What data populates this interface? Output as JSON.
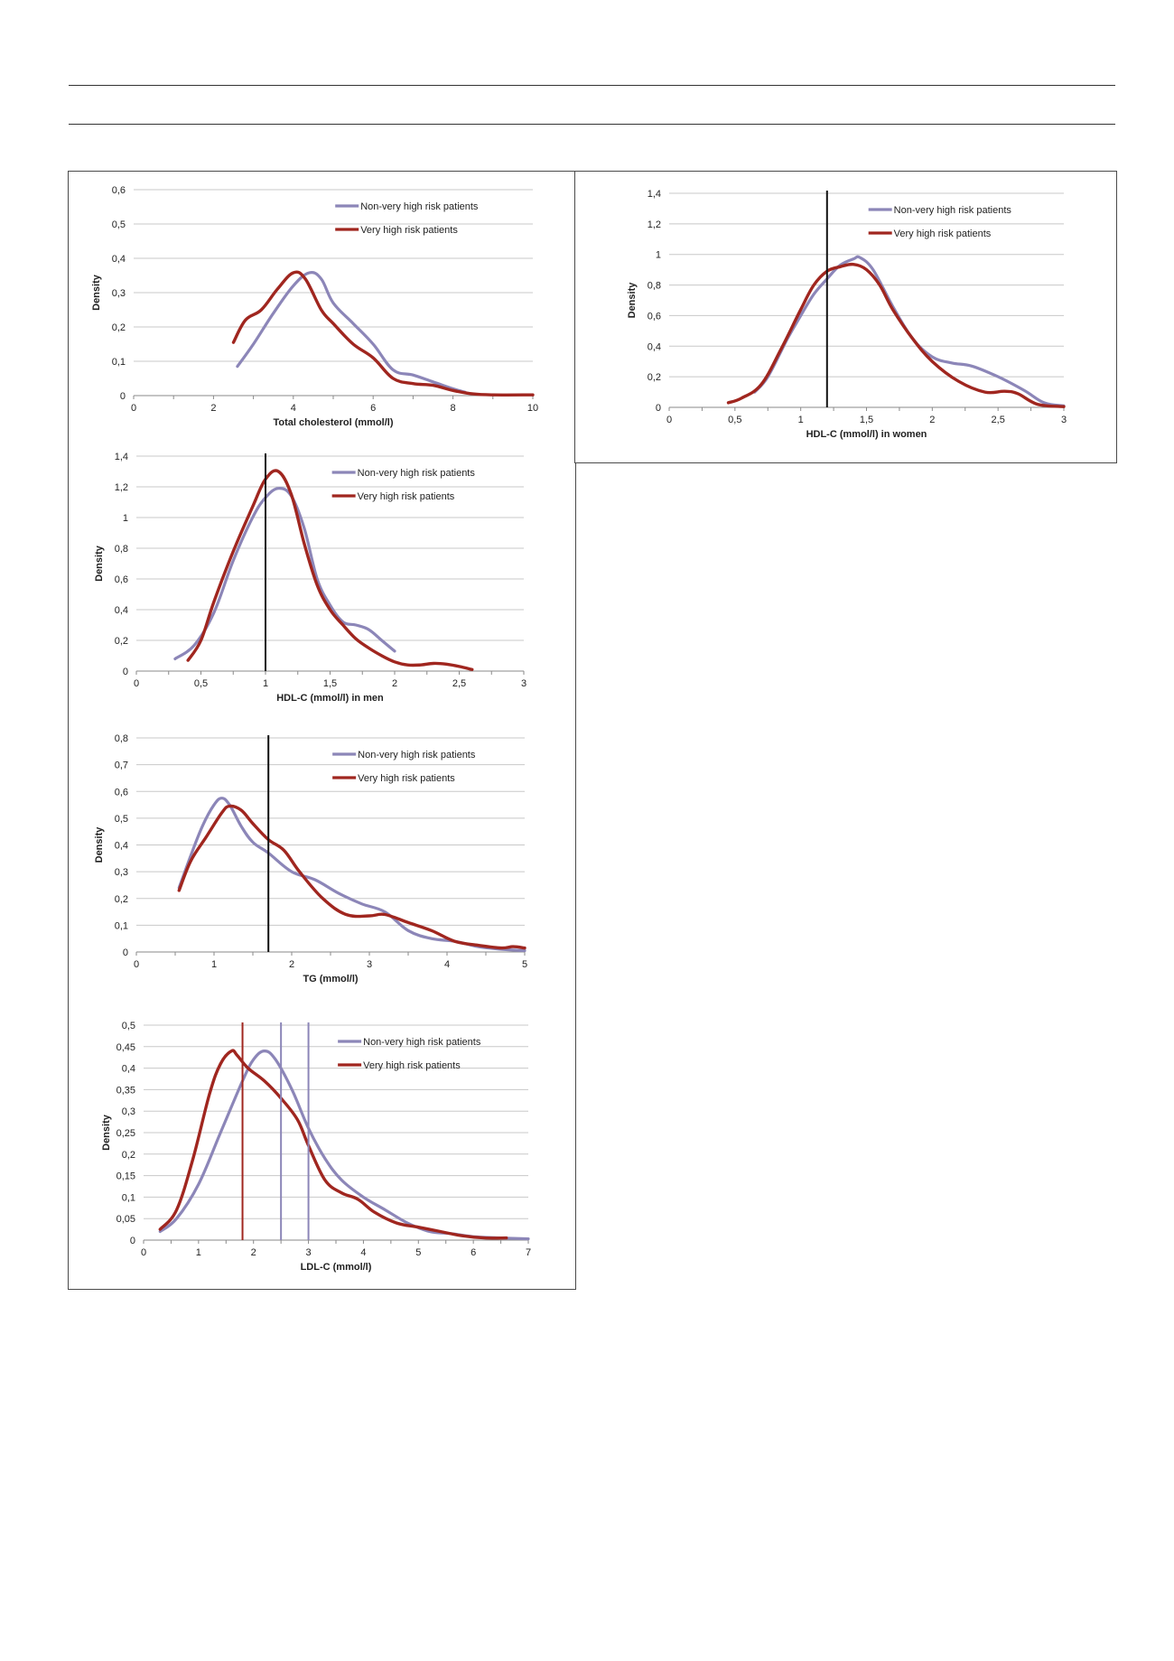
{
  "colors": {
    "non_very_high": "#8c86b8",
    "very_high": "#a0261f",
    "cutoff_black": "#111111",
    "grid": "#c8c8c8"
  },
  "chart_data": [
    {
      "id": "total_cholesterol",
      "type": "line",
      "xlabel": "Total cholesterol (mmol/l)",
      "ylabel": "Density",
      "xlim": [
        0,
        10
      ],
      "ylim": [
        0,
        0.6
      ],
      "xticks": [
        0,
        2,
        4,
        6,
        8,
        10
      ],
      "xtick_labels": [
        "0",
        "2",
        "4",
        "6",
        "8",
        "10"
      ],
      "yticks": [
        0,
        0.1,
        0.2,
        0.3,
        0.4,
        0.5,
        0.6
      ],
      "ytick_labels": [
        "0",
        "0,1",
        "0,2",
        "0,3",
        "0,4",
        "0,5",
        "0,6"
      ],
      "x_minor_step": 1,
      "cutoffs": [],
      "series": [
        {
          "name": "Non-very high risk patients",
          "x": [
            2.6,
            3.0,
            3.5,
            4.0,
            4.4,
            4.7,
            5.0,
            5.5,
            6.0,
            6.5,
            7.0,
            7.5,
            8.0,
            8.3
          ],
          "y": [
            0.085,
            0.15,
            0.24,
            0.32,
            0.358,
            0.34,
            0.27,
            0.21,
            0.15,
            0.075,
            0.06,
            0.04,
            0.02,
            0.01
          ]
        },
        {
          "name": "Very high risk patients",
          "x": [
            2.5,
            2.8,
            3.2,
            3.6,
            4.0,
            4.3,
            4.7,
            5.0,
            5.5,
            6.0,
            6.5,
            7.0,
            7.5,
            8.0,
            8.5,
            9.0,
            10.0
          ],
          "y": [
            0.155,
            0.22,
            0.25,
            0.31,
            0.358,
            0.34,
            0.25,
            0.21,
            0.15,
            0.11,
            0.05,
            0.035,
            0.03,
            0.015,
            0.005,
            0.002,
            0.002
          ]
        }
      ]
    },
    {
      "id": "hdl_men",
      "type": "line",
      "xlabel": "HDL-C (mmol/l) in men",
      "ylabel": "Density",
      "xlim": [
        0,
        3
      ],
      "ylim": [
        0,
        1.4
      ],
      "xticks": [
        0,
        0.5,
        1,
        1.5,
        2,
        2.5,
        3
      ],
      "xtick_labels": [
        "0",
        "0,5",
        "1",
        "1,5",
        "2",
        "2,5",
        "3"
      ],
      "yticks": [
        0,
        0.2,
        0.4,
        0.6,
        0.8,
        1.0,
        1.2,
        1.4
      ],
      "ytick_labels": [
        "0",
        "0,2",
        "0,4",
        "0,6",
        "0,8",
        "1",
        "1,2",
        "1,4"
      ],
      "x_minor_step": 0.25,
      "cutoffs": [
        {
          "x": 1.0,
          "color": "#111111"
        }
      ],
      "series": [
        {
          "name": "Non-very high risk patients",
          "x": [
            0.3,
            0.45,
            0.6,
            0.75,
            0.9,
            1.0,
            1.1,
            1.2,
            1.3,
            1.4,
            1.5,
            1.6,
            1.7,
            1.8,
            1.9,
            2.0
          ],
          "y": [
            0.08,
            0.17,
            0.38,
            0.72,
            1.0,
            1.13,
            1.19,
            1.14,
            0.93,
            0.6,
            0.43,
            0.32,
            0.3,
            0.27,
            0.2,
            0.13
          ]
        },
        {
          "name": "Very high risk patients",
          "x": [
            0.4,
            0.5,
            0.6,
            0.75,
            0.9,
            1.0,
            1.1,
            1.2,
            1.3,
            1.4,
            1.5,
            1.6,
            1.7,
            1.8,
            1.9,
            2.0,
            2.1,
            2.2,
            2.3,
            2.4,
            2.5,
            2.6
          ],
          "y": [
            0.07,
            0.2,
            0.45,
            0.78,
            1.07,
            1.25,
            1.3,
            1.15,
            0.83,
            0.56,
            0.4,
            0.3,
            0.21,
            0.15,
            0.1,
            0.06,
            0.04,
            0.04,
            0.05,
            0.045,
            0.03,
            0.01
          ]
        }
      ]
    },
    {
      "id": "tg",
      "type": "line",
      "xlabel": "TG (mmol/l)",
      "ylabel": "Density",
      "xlim": [
        0,
        5
      ],
      "ylim": [
        0,
        0.8
      ],
      "xticks": [
        0,
        1,
        2,
        3,
        4,
        5
      ],
      "xtick_labels": [
        "0",
        "1",
        "2",
        "3",
        "4",
        "5"
      ],
      "yticks": [
        0,
        0.1,
        0.2,
        0.3,
        0.4,
        0.5,
        0.6,
        0.7,
        0.8
      ],
      "ytick_labels": [
        "0",
        "0,1",
        "0,2",
        "0,3",
        "0,4",
        "0,5",
        "0,6",
        "0,7",
        "0,8"
      ],
      "x_minor_step": 0.5,
      "cutoffs": [
        {
          "x": 1.7,
          "color": "#111111"
        }
      ],
      "series": [
        {
          "name": "Non-very high risk patients",
          "x": [
            0.55,
            0.7,
            0.85,
            1.0,
            1.1,
            1.2,
            1.35,
            1.5,
            1.7,
            2.0,
            2.3,
            2.6,
            2.9,
            3.2,
            3.5,
            3.8,
            4.1,
            4.4,
            4.7,
            5.0
          ],
          "y": [
            0.24,
            0.36,
            0.47,
            0.55,
            0.575,
            0.55,
            0.47,
            0.41,
            0.37,
            0.3,
            0.27,
            0.22,
            0.18,
            0.15,
            0.08,
            0.05,
            0.04,
            0.02,
            0.01,
            0.005
          ]
        },
        {
          "name": "Very high risk patients",
          "x": [
            0.55,
            0.7,
            0.9,
            1.1,
            1.2,
            1.35,
            1.5,
            1.7,
            1.9,
            2.1,
            2.4,
            2.7,
            3.0,
            3.2,
            3.5,
            3.8,
            4.1,
            4.4,
            4.7,
            4.85,
            5.0
          ],
          "y": [
            0.23,
            0.34,
            0.43,
            0.52,
            0.545,
            0.53,
            0.48,
            0.42,
            0.38,
            0.3,
            0.2,
            0.14,
            0.135,
            0.14,
            0.11,
            0.08,
            0.04,
            0.025,
            0.015,
            0.02,
            0.015
          ]
        }
      ]
    },
    {
      "id": "ldl",
      "type": "line",
      "xlabel": "LDL-C (mmol/l)",
      "ylabel": "Density",
      "xlim": [
        0,
        7
      ],
      "ylim": [
        0,
        0.5
      ],
      "xticks": [
        0,
        1,
        2,
        3,
        4,
        5,
        6,
        7
      ],
      "xtick_labels": [
        "0",
        "1",
        "2",
        "3",
        "4",
        "5",
        "6",
        "7"
      ],
      "yticks": [
        0,
        0.05,
        0.1,
        0.15,
        0.2,
        0.25,
        0.3,
        0.35,
        0.4,
        0.45,
        0.5
      ],
      "ytick_labels": [
        "0",
        "0,05",
        "0,1",
        "0,15",
        "0,2",
        "0,25",
        "0,3",
        "0,35",
        "0,4",
        "0,45",
        "0,5"
      ],
      "x_minor_step": 0.5,
      "cutoffs": [
        {
          "x": 1.8,
          "color": "#a0261f"
        },
        {
          "x": 2.5,
          "color": "#8c86b8"
        },
        {
          "x": 3.0,
          "color": "#8c86b8"
        }
      ],
      "series": [
        {
          "name": "Non-very high risk patients",
          "x": [
            0.3,
            0.6,
            1.0,
            1.4,
            1.8,
            2.0,
            2.2,
            2.4,
            2.7,
            3.0,
            3.3,
            3.6,
            4.0,
            4.4,
            4.8,
            5.2,
            5.6,
            6.0,
            6.5,
            7.0
          ],
          "y": [
            0.02,
            0.05,
            0.13,
            0.25,
            0.37,
            0.42,
            0.44,
            0.42,
            0.35,
            0.26,
            0.19,
            0.14,
            0.1,
            0.07,
            0.04,
            0.02,
            0.015,
            0.008,
            0.005,
            0.003
          ]
        },
        {
          "name": "Very high risk patients",
          "x": [
            0.3,
            0.6,
            0.9,
            1.2,
            1.4,
            1.6,
            1.7,
            1.9,
            2.2,
            2.5,
            2.8,
            3.0,
            3.3,
            3.6,
            3.9,
            4.2,
            4.6,
            5.0,
            5.4,
            5.8,
            6.2,
            6.6
          ],
          "y": [
            0.025,
            0.07,
            0.19,
            0.34,
            0.41,
            0.44,
            0.43,
            0.4,
            0.37,
            0.33,
            0.28,
            0.22,
            0.14,
            0.11,
            0.095,
            0.065,
            0.04,
            0.03,
            0.02,
            0.01,
            0.005,
            0.005
          ]
        }
      ]
    },
    {
      "id": "hdl_women",
      "type": "line",
      "xlabel": "HDL-C (mmol/l) in women",
      "ylabel": "Density",
      "xlim": [
        0,
        3
      ],
      "ylim": [
        0,
        1.4
      ],
      "xticks": [
        0,
        0.5,
        1,
        1.5,
        2,
        2.5,
        3
      ],
      "xtick_labels": [
        "0",
        "0,5",
        "1",
        "1,5",
        "2",
        "2,5",
        "3"
      ],
      "yticks": [
        0,
        0.2,
        0.4,
        0.6,
        0.8,
        1.0,
        1.2,
        1.4
      ],
      "ytick_labels": [
        "0",
        "0,2",
        "0,4",
        "0,6",
        "0,8",
        "1",
        "1,2",
        "1,4"
      ],
      "x_minor_step": 0.25,
      "cutoffs": [
        {
          "x": 1.2,
          "color": "#111111"
        }
      ],
      "series": [
        {
          "name": "Non-very high risk patients",
          "x": [
            0.65,
            0.75,
            0.9,
            1.0,
            1.1,
            1.2,
            1.3,
            1.4,
            1.45,
            1.55,
            1.7,
            1.85,
            2.0,
            2.15,
            2.3,
            2.5,
            2.7,
            2.85,
            3.0
          ],
          "y": [
            0.1,
            0.2,
            0.45,
            0.6,
            0.74,
            0.84,
            0.93,
            0.97,
            0.98,
            0.9,
            0.66,
            0.45,
            0.33,
            0.29,
            0.27,
            0.2,
            0.11,
            0.03,
            0.01
          ]
        },
        {
          "name": "Very high risk patients",
          "x": [
            0.45,
            0.55,
            0.7,
            0.85,
            1.0,
            1.1,
            1.2,
            1.3,
            1.4,
            1.5,
            1.6,
            1.7,
            1.85,
            2.0,
            2.2,
            2.4,
            2.55,
            2.65,
            2.8,
            3.0
          ],
          "y": [
            0.03,
            0.06,
            0.15,
            0.38,
            0.64,
            0.8,
            0.89,
            0.92,
            0.935,
            0.9,
            0.8,
            0.64,
            0.45,
            0.3,
            0.17,
            0.1,
            0.105,
            0.09,
            0.02,
            0.005
          ]
        }
      ]
    }
  ]
}
